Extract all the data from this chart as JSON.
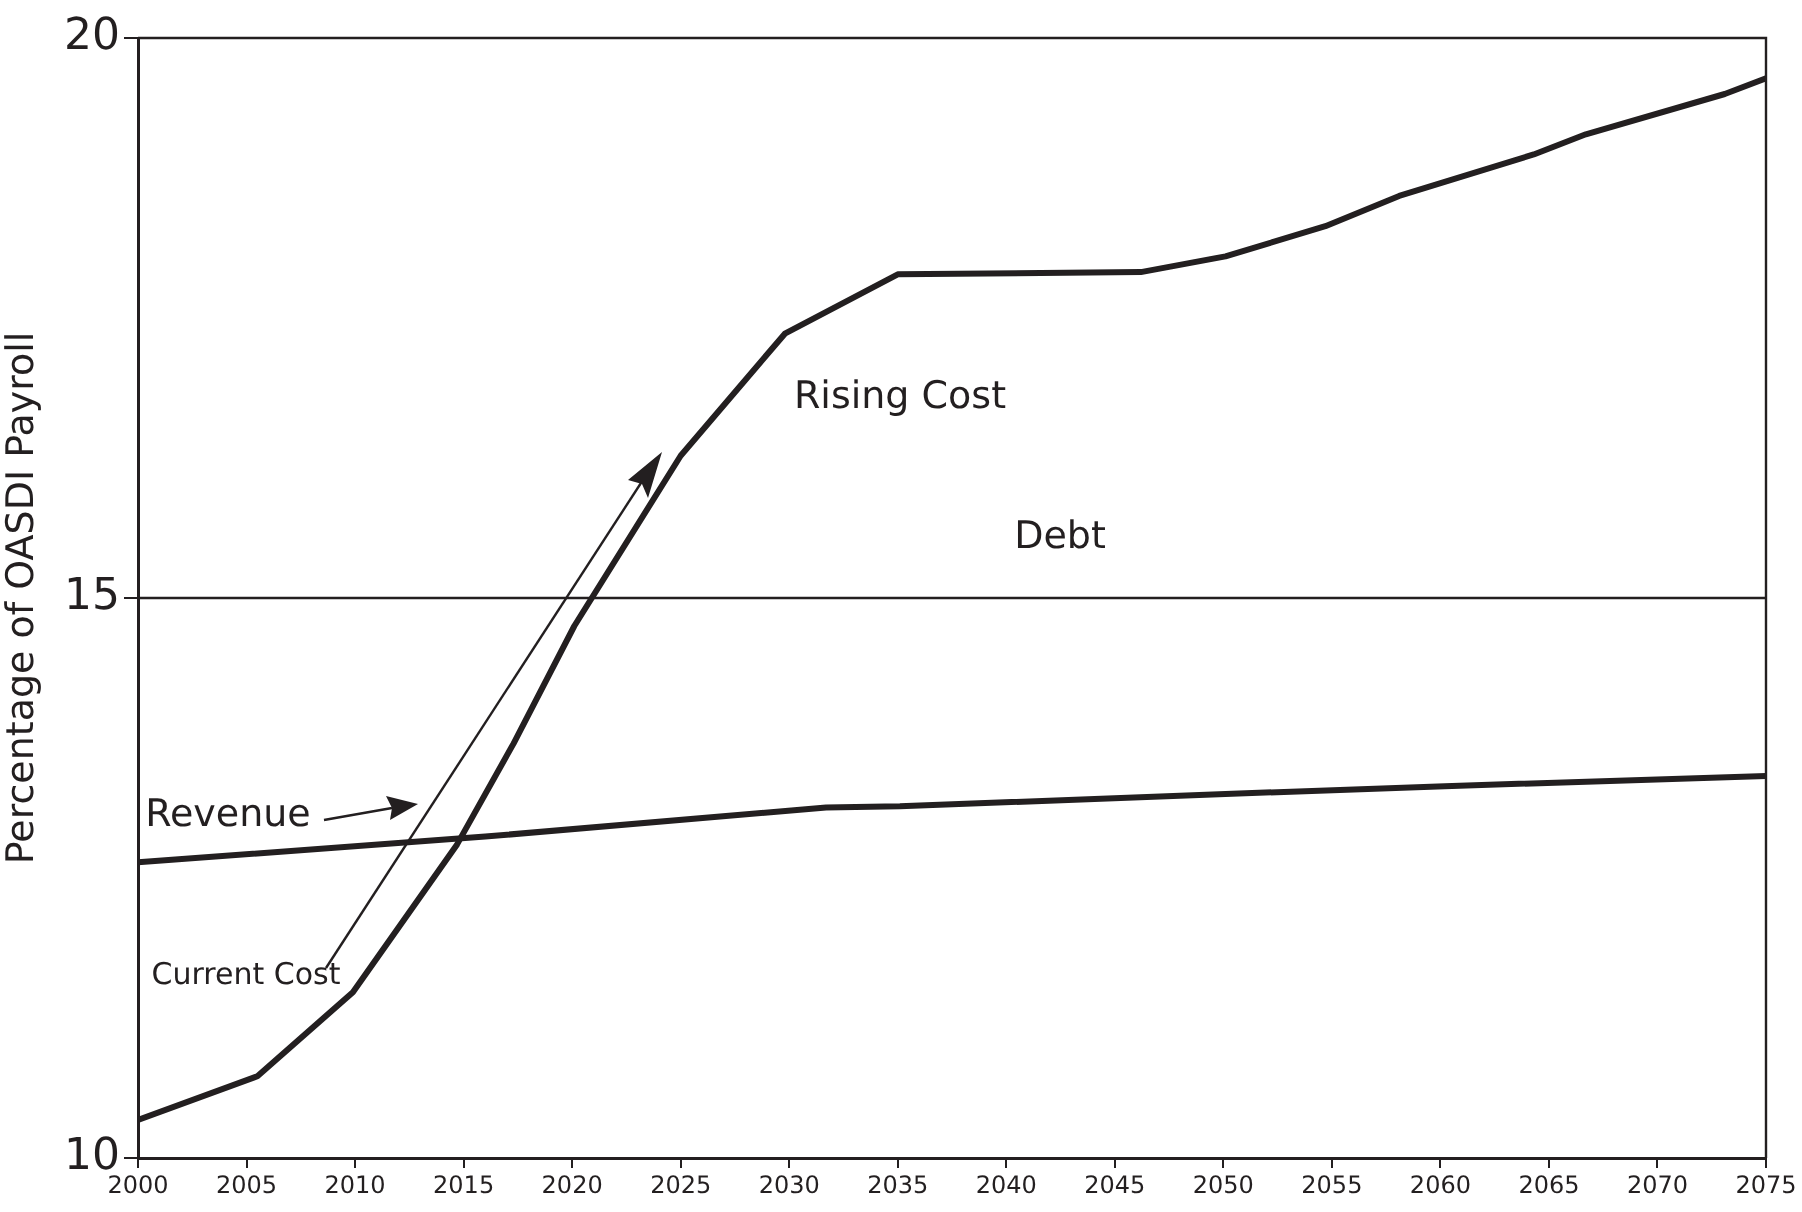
{
  "chart_data": {
    "type": "line",
    "ylabel": "Percentage of OASDI Payroll",
    "xlim": [
      2000,
      2075
    ],
    "xticks": [
      2000,
      2005,
      2010,
      2015,
      2020,
      2025,
      2030,
      2035,
      2040,
      2045,
      2050,
      2055,
      2060,
      2065,
      2070,
      2075
    ],
    "ylim": [
      10,
      20
    ],
    "yticks": [
      10,
      15,
      20
    ],
    "grid": false,
    "legend": false,
    "marker": "none",
    "line_style": "solid",
    "series": [
      {
        "color": "#231f20",
        "x": [
          2000,
          2005.5,
          2009.9,
          2014.7,
          2017.3,
          2020.1,
          2025,
          2029.8,
          2035,
          2046.2,
          2050.1,
          2054.7,
          2058.1,
          2064.3,
          2066.7,
          2073.1,
          2075
        ],
        "values": [
          10.34,
          10.73,
          11.48,
          12.8,
          13.7,
          14.75,
          16.27,
          17.36,
          17.89,
          17.91,
          18.05,
          18.32,
          18.59,
          18.96,
          19.14,
          19.5,
          19.64
        ]
      },
      {
        "color": "#231f20",
        "x": [
          2000,
          2016,
          2031.7,
          2035.1,
          2050.1,
          2060.2,
          2075
        ],
        "values": [
          12.64,
          12.87,
          13.13,
          13.14,
          13.25,
          13.32,
          13.41
        ]
      }
    ],
    "ref_lines": [
      {
        "axis": "y",
        "value": 15,
        "color": "#231f20"
      }
    ],
    "annotations": [
      "Rising Cost",
      "Debt",
      "Revenue",
      "Current Cost"
    ]
  }
}
